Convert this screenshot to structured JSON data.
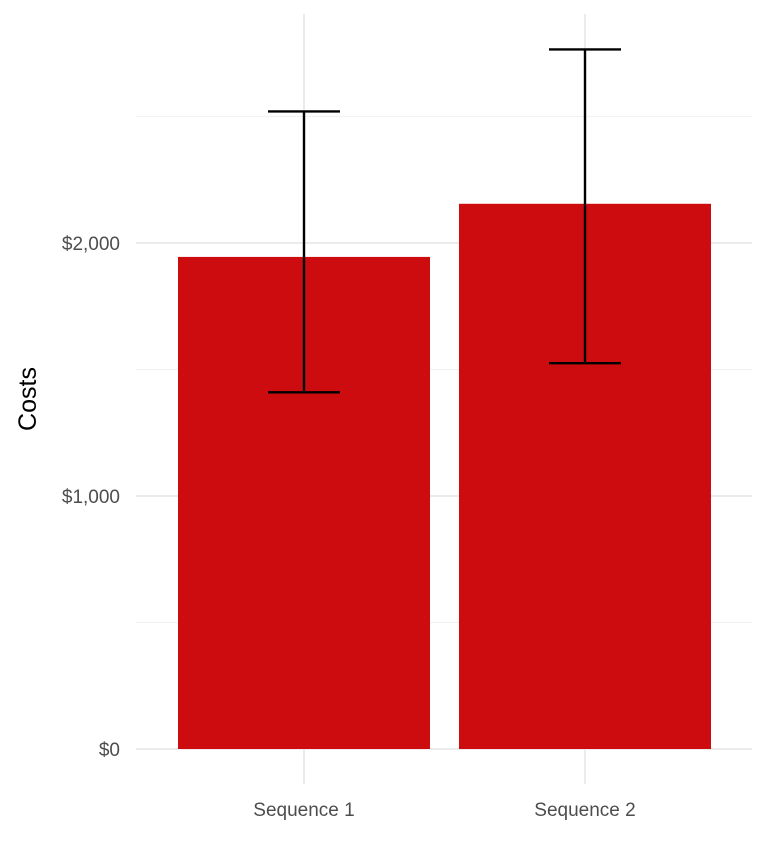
{
  "chart_data": {
    "type": "bar",
    "title": "",
    "xlabel": "",
    "ylabel": "Costs",
    "categories": [
      "Sequence 1",
      "Sequence 2"
    ],
    "values": [
      1945,
      2155
    ],
    "error_low": [
      1410,
      1525
    ],
    "error_high": [
      2520,
      2765
    ],
    "ylim": [
      0,
      2900
    ],
    "y_ticks": [
      0,
      1000,
      2000
    ],
    "y_tick_labels": [
      "$0",
      "$1,000",
      "$2,000"
    ],
    "y_minor_ticks": [
      500,
      1500,
      2500
    ],
    "grid": true,
    "legend": "none",
    "bar_color": "#CC0C0E"
  }
}
